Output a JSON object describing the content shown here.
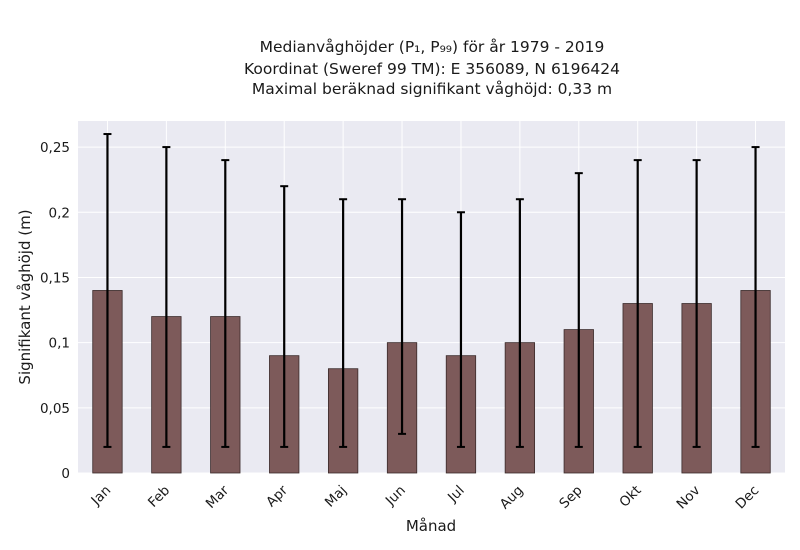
{
  "chart_data": {
    "type": "bar",
    "title_lines": [
      "Medianvåghöjder (P₁, P₉₉) för år 1979 - 2019",
      "Koordinat (Sweref 99 TM): E 356089, N 6196424",
      "Maximal beräknad signifikant våghöjd: 0,33 m"
    ],
    "xlabel": "Månad",
    "ylabel": "Signifikant våghöjd (m)",
    "categories": [
      "Jan",
      "Feb",
      "Mar",
      "Apr",
      "Maj",
      "Jun",
      "Jul",
      "Aug",
      "Sep",
      "Okt",
      "Nov",
      "Dec"
    ],
    "values": [
      0.14,
      0.12,
      0.12,
      0.09,
      0.08,
      0.1,
      0.09,
      0.1,
      0.11,
      0.13,
      0.13,
      0.14
    ],
    "p1": [
      0.02,
      0.02,
      0.02,
      0.02,
      0.02,
      0.03,
      0.02,
      0.02,
      0.02,
      0.02,
      0.02,
      0.02
    ],
    "p99": [
      0.26,
      0.25,
      0.24,
      0.22,
      0.21,
      0.21,
      0.2,
      0.21,
      0.23,
      0.24,
      0.24,
      0.25
    ],
    "ylim": [
      0,
      0.27
    ],
    "yticks": [
      0,
      0.05,
      0.1,
      0.15,
      0.2,
      0.25
    ],
    "ytick_labels": [
      "0",
      "0,05",
      "0,1",
      "0,15",
      "0,2",
      "0,25"
    ],
    "grid": true,
    "bar_color": "#7d5a5a",
    "bar_edge_color": "#3a2a2a",
    "errorbar_color": "#000000",
    "plot_background": "#eaeaf2",
    "grid_color": "#ffffff"
  }
}
